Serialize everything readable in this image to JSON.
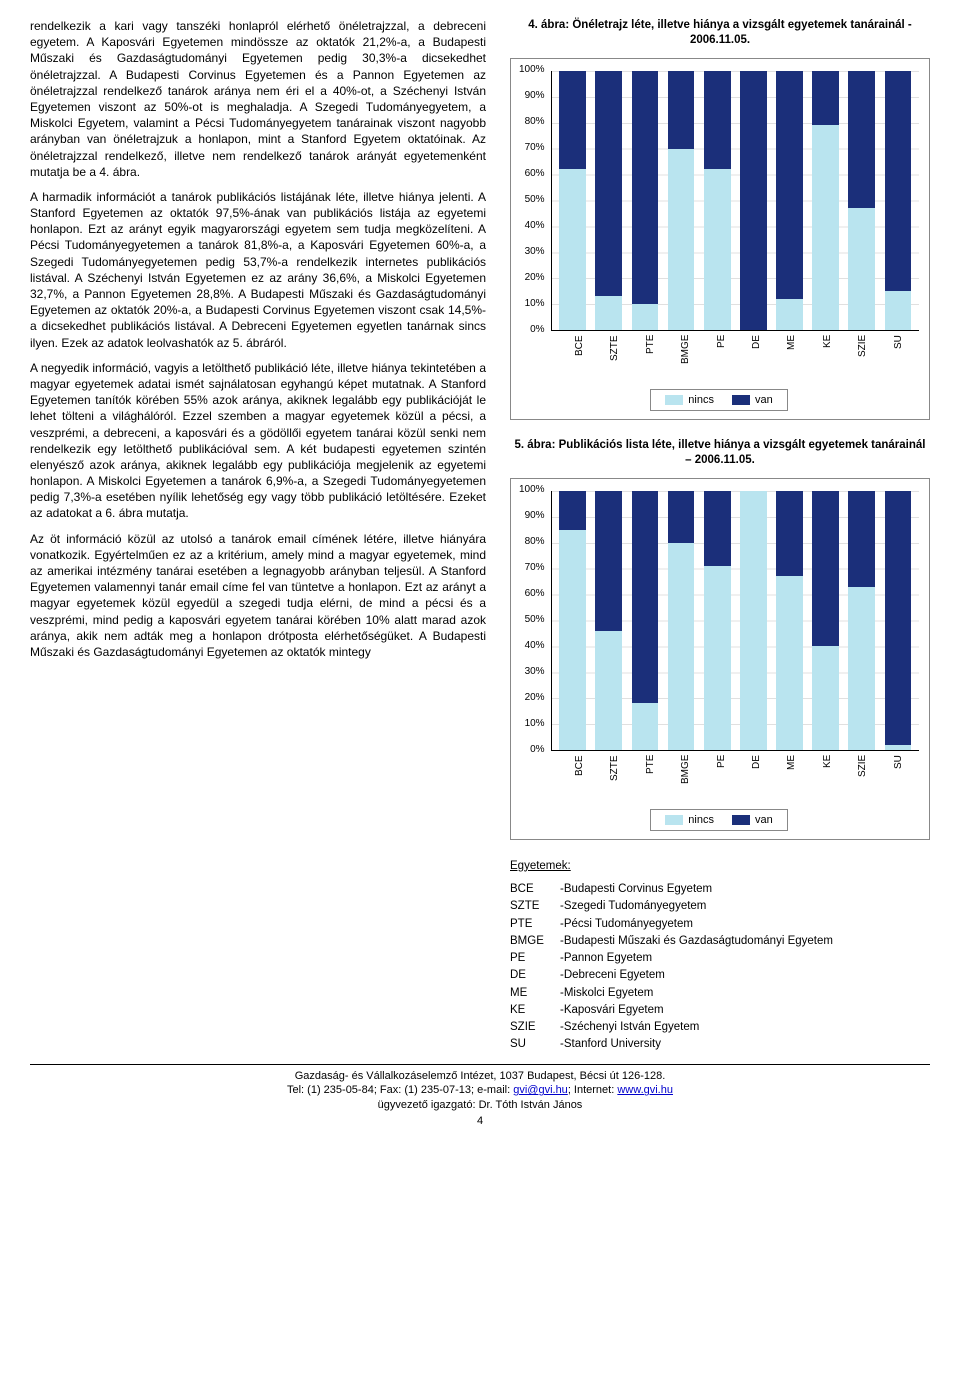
{
  "colors": {
    "van": "#1b2f7a",
    "nincs": "#b9e4ef",
    "grid": "#e0e0e0",
    "border": "#888888",
    "link": "#0000cc"
  },
  "left_text": {
    "p1": "rendelkezik a kari vagy tanszéki honlapról elérhető önéletrajzzal, a debreceni egyetem. A Kaposvári Egyetemen mindössze az oktatók 21,2%-a, a Budapesti Műszaki és Gazdaságtudományi Egyetemen pedig 30,3%-a dicsekedhet önéletrajzzal. A Budapesti Corvinus Egyetemen és a Pannon Egyetemen az önéletrajzzal rendelkező tanárok aránya nem éri el a 40%-ot, a Széchenyi István Egyetemen viszont az 50%-ot is meghaladja. A Szegedi Tudományegyetem, a Miskolci Egyetem, valamint a Pécsi Tudományegyetem tanárainak viszont nagyobb arányban van önéletrajzuk a honlapon, mint a Stanford Egyetem oktatóinak. Az önéletrajzzal rendelkező, illetve nem rendelkező tanárok arányát egyetemenként mutatja be a 4. ábra.",
    "p2": "A harmadik információt a tanárok publikációs listájának léte, illetve hiánya jelenti. A Stanford Egyetemen az oktatók 97,5%-ának van publikációs listája az egyetemi honlapon. Ezt az arányt egyik magyarországi egyetem sem tudja megközelíteni. A Pécsi Tudományegyetemen a tanárok 81,8%-a, a Kaposvári Egyetemen 60%-a, a Szegedi Tudományegyetemen pedig 53,7%-a rendelkezik internetes publikációs listával. A Széchenyi István Egyetemen ez az arány 36,6%, a Miskolci Egyetemen 32,7%, a Pannon Egyetemen 28,8%. A Budapesti Műszaki és Gazdaságtudományi Egyetemen az oktatók 20%-a, a Budapesti Corvinus Egyetemen viszont csak 14,5%-a dicsekedhet publikációs listával. A Debreceni Egyetemen egyetlen tanárnak sincs ilyen. Ezek az adatok leolvashatók az 5. ábráról.",
    "p3": "A negyedik információ, vagyis a letölthető publikáció léte, illetve hiánya tekintetében a magyar egyetemek adatai ismét sajnálatosan egyhangú képet mutatnak. A Stanford Egyetemen tanítók körében 55% azok aránya, akiknek legalább egy publikációját le lehet tölteni a világhálóról. Ezzel szemben a magyar egyetemek közül a pécsi, a veszprémi, a debreceni, a kaposvári és a gödöllői egyetem tanárai közül senki nem rendelkezik egy letölthető publikációval sem. A két budapesti egyetemen szintén elenyésző azok aránya, akiknek legalább egy publikációja megjelenik az egyetemi honlapon. A Miskolci Egyetemen a tanárok 6,9%-a, a Szegedi Tudományegyetemen pedig 7,3%-a esetében nyílik lehetőség egy vagy több publikáció letöltésére. Ezeket az adatokat a 6. ábra mutatja.",
    "p4": "Az öt információ közül az utolsó a tanárok email címének létére, illetve hiányára vonatkozik. Egyértelműen ez az a kritérium, amely mind a magyar egyetemek, mind az amerikai intézmény tanárai esetében a legnagyobb arányban teljesül. A Stanford Egyetemen valamennyi tanár email címe fel van tüntetve a honlapon. Ezt az arányt a magyar egyetemek közül egyedül a szegedi tudja elérni, de mind a pécsi és a veszprémi, mind pedig a kaposvári egyetem tanárai körében 10% alatt marad azok aránya, akik nem adták meg a honlapon drótposta elérhetőségüket. A Budapesti Műszaki és Gazdaságtudományi Egyetemen az oktatók mintegy"
  },
  "chart4": {
    "title": "4. ábra: Önéletrajz léte, illetve hiánya a vizsgált egyetemek tanárainál - 2006.11.05.",
    "y_ticks": [
      "100%",
      "90%",
      "80%",
      "70%",
      "60%",
      "50%",
      "40%",
      "30%",
      "20%",
      "10%",
      "0%"
    ],
    "categories": [
      "BCE",
      "SZTE",
      "PTE",
      "BMGE",
      "PE",
      "DE",
      "ME",
      "KE",
      "SZIE",
      "SU"
    ],
    "van_pct": [
      38,
      87,
      90,
      30,
      38,
      100,
      88,
      21,
      53,
      85
    ],
    "legend": {
      "nincs": "nincs",
      "van": "van"
    }
  },
  "chart5": {
    "title": "5. ábra: Publikációs lista léte, illetve hiánya a vizsgált egyetemek tanárainál – 2006.11.05.",
    "y_ticks": [
      "100%",
      "90%",
      "80%",
      "70%",
      "60%",
      "50%",
      "40%",
      "30%",
      "20%",
      "10%",
      "0%"
    ],
    "categories": [
      "BCE",
      "SZTE",
      "PTE",
      "BMGE",
      "PE",
      "DE",
      "ME",
      "KE",
      "SZIE",
      "SU"
    ],
    "van_pct": [
      15,
      54,
      82,
      20,
      29,
      0,
      33,
      60,
      37,
      98
    ],
    "legend": {
      "nincs": "nincs",
      "van": "van"
    }
  },
  "universities": {
    "title": "Egyetemek:",
    "rows": [
      {
        "abbr": "BCE",
        "name": "-Budapesti Corvinus Egyetem"
      },
      {
        "abbr": "SZTE",
        "name": "-Szegedi Tudományegyetem"
      },
      {
        "abbr": "PTE",
        "name": "-Pécsi Tudományegyetem"
      },
      {
        "abbr": "BMGE",
        "name": "-Budapesti Műszaki és Gazdaságtudományi Egyetem"
      },
      {
        "abbr": "PE",
        "name": "-Pannon Egyetem"
      },
      {
        "abbr": "DE",
        "name": "-Debreceni Egyetem"
      },
      {
        "abbr": "ME",
        "name": "-Miskolci Egyetem"
      },
      {
        "abbr": "KE",
        "name": "-Kaposvári Egyetem"
      },
      {
        "abbr": "SZIE",
        "name": "-Széchenyi István Egyetem"
      },
      {
        "abbr": "SU",
        "name": "-Stanford University"
      }
    ]
  },
  "footer": {
    "line1": "Gazdaság- és Vállalkozáselemző Intézet, 1037 Budapest, Bécsi út 126-128.",
    "line2_pre": "Tel: (1) 235-05-84;  Fax: (1) 235-07-13;  e-mail: ",
    "email": "gvi@gvi.hu",
    "line2_mid": ";  Internet: ",
    "url": "www.gvi.hu",
    "line3": "ügyvezető igazgató: Dr. Tóth István János",
    "page": "4"
  }
}
